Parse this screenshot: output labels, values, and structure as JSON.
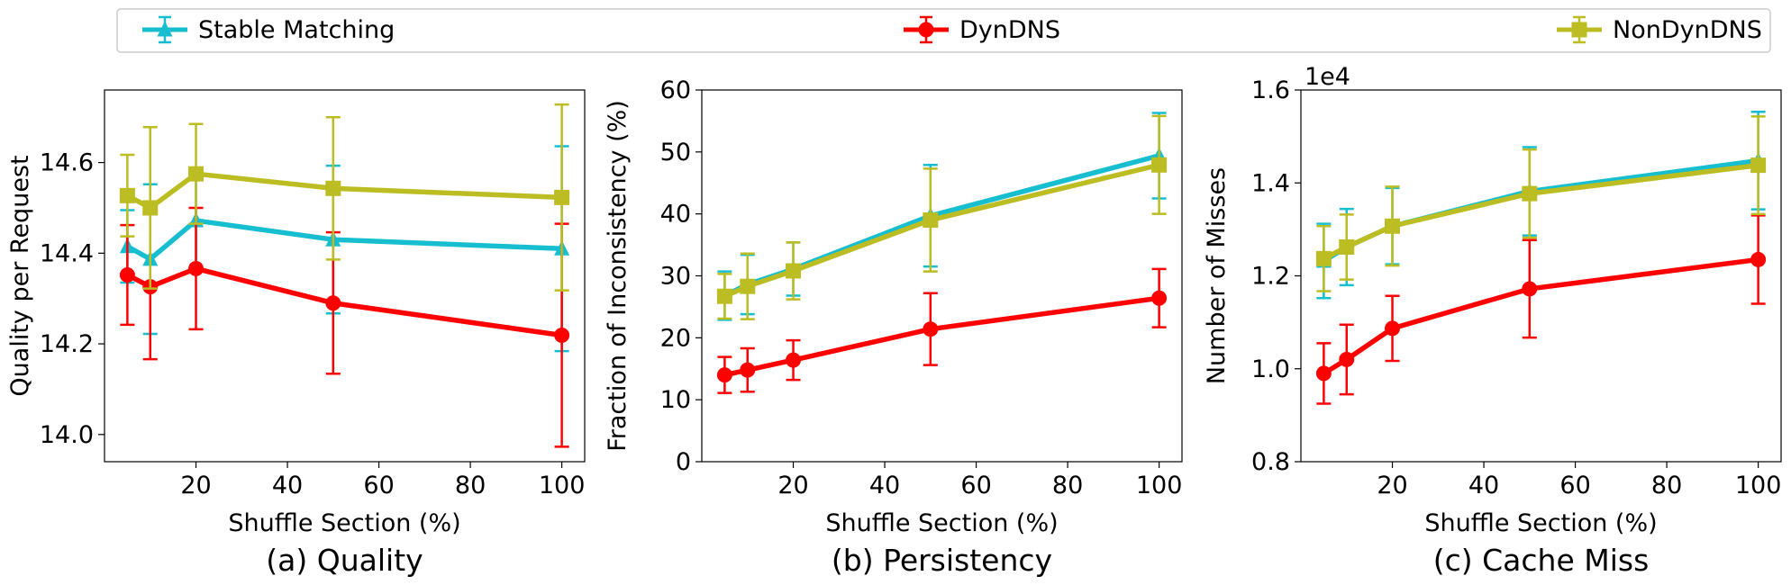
{
  "legend": {
    "placement": "top",
    "entries": [
      {
        "label": "Stable Matching",
        "color": "#17becf",
        "marker": "triangle"
      },
      {
        "label": "DynDNS",
        "color": "#ff0000",
        "marker": "circle"
      },
      {
        "label": "NonDynDNS",
        "color": "#bcbd22",
        "marker": "square"
      }
    ]
  },
  "chart_data": [
    {
      "type": "line",
      "caption": "(a)  Quality",
      "xlabel": "Shuffle Section (%)",
      "ylabel": "Quality per Request",
      "xlim": [
        0,
        105
      ],
      "ylim": [
        13.94,
        14.76
      ],
      "xticks": [
        20,
        40,
        60,
        80,
        100
      ],
      "yticks": [
        14.0,
        14.2,
        14.4,
        14.6
      ],
      "ytick_labels": [
        "14.0",
        "14.2",
        "14.4",
        "14.6"
      ],
      "grid": false,
      "x": [
        5,
        10,
        20,
        50,
        100
      ],
      "series": [
        {
          "name": "Stable Matching",
          "values": [
            14.415,
            14.387,
            14.472,
            14.43,
            14.41
          ],
          "err": [
            0.08,
            0.165,
            0.11,
            0.163,
            0.226
          ]
        },
        {
          "name": "DynDNS",
          "values": [
            14.352,
            14.326,
            14.366,
            14.29,
            14.219
          ],
          "err": [
            0.11,
            0.16,
            0.134,
            0.156,
            0.246
          ]
        },
        {
          "name": "NonDynDNS",
          "values": [
            14.527,
            14.5,
            14.575,
            14.543,
            14.523
          ],
          "err": [
            0.09,
            0.178,
            0.11,
            0.157,
            0.205
          ]
        }
      ]
    },
    {
      "type": "line",
      "caption": "(b)  Persistency",
      "xlabel": "Shuffle Section (%)",
      "ylabel": "Fraction of Inconsistency (%)",
      "xlim": [
        0,
        105
      ],
      "ylim": [
        0,
        60
      ],
      "xticks": [
        20,
        40,
        60,
        80,
        100
      ],
      "yticks": [
        0,
        10,
        20,
        30,
        40,
        50,
        60
      ],
      "ytick_labels": [
        "0",
        "10",
        "20",
        "30",
        "40",
        "50",
        "60"
      ],
      "grid": false,
      "x": [
        5,
        10,
        20,
        50,
        100
      ],
      "series": [
        {
          "name": "Stable Matching",
          "values": [
            26.8,
            28.6,
            31.1,
            39.7,
            49.4
          ],
          "err": [
            3.9,
            4.8,
            4.3,
            8.2,
            6.9
          ]
        },
        {
          "name": "DynDNS",
          "values": [
            14.0,
            14.8,
            16.4,
            21.4,
            26.4
          ],
          "err": [
            2.9,
            3.5,
            3.2,
            5.8,
            4.7
          ]
        },
        {
          "name": "NonDynDNS",
          "values": [
            26.7,
            28.3,
            30.8,
            39.0,
            47.9
          ],
          "err": [
            3.6,
            5.3,
            4.6,
            8.3,
            7.9
          ]
        }
      ]
    },
    {
      "type": "line",
      "caption": "(c)  Cache Miss",
      "xlabel": "Shuffle Section (%)",
      "ylabel": "Number of Misses",
      "scale_label": "1e4",
      "xlim": [
        0,
        105
      ],
      "ylim": [
        0.8,
        1.6
      ],
      "xticks": [
        20,
        40,
        60,
        80,
        100
      ],
      "yticks": [
        0.8,
        1.0,
        1.2,
        1.4,
        1.6
      ],
      "ytick_labels": [
        "0.8",
        "1.0",
        "1.2",
        "1.4",
        "1.6"
      ],
      "grid": false,
      "x": [
        5,
        10,
        20,
        50,
        100
      ],
      "series": [
        {
          "name": "Stable Matching",
          "values": [
            1.232,
            1.262,
            1.307,
            1.382,
            1.448
          ],
          "err": [
            0.08,
            0.082,
            0.082,
            0.095,
            0.105
          ]
        },
        {
          "name": "DynDNS",
          "values": [
            0.99,
            1.02,
            1.087,
            1.172,
            1.235
          ],
          "err": [
            0.065,
            0.075,
            0.07,
            0.105,
            0.095
          ]
        },
        {
          "name": "NonDynDNS",
          "values": [
            1.237,
            1.262,
            1.307,
            1.377,
            1.438
          ],
          "err": [
            0.07,
            0.07,
            0.085,
            0.095,
            0.105
          ]
        }
      ]
    }
  ]
}
